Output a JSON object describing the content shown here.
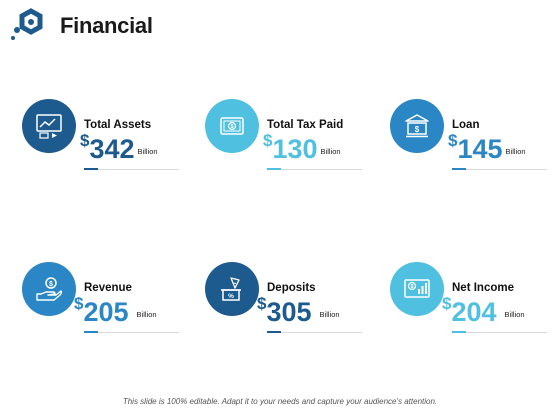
{
  "title": "Financial",
  "colors": {
    "dark_blue": "#1d5a8e",
    "mid_blue": "#2a86c4",
    "light_blue": "#4fc0e0"
  },
  "cards": [
    {
      "label": "Total Assets",
      "currency": "$",
      "value": "342",
      "unit": "Billion",
      "icon": "presentation-chart-icon",
      "color": "dark_blue"
    },
    {
      "label": "Total Tax Paid",
      "currency": "$",
      "value": "130",
      "unit": "Billion",
      "icon": "banknote-icon",
      "color": "light_blue"
    },
    {
      "label": "Loan",
      "currency": "$",
      "value": "145",
      "unit": "Billion",
      "icon": "bank-icon",
      "color": "mid_blue"
    },
    {
      "label": "Revenue",
      "currency": "$",
      "value": "205",
      "unit": "Billion",
      "icon": "hand-coin-icon",
      "color": "mid_blue"
    },
    {
      "label": "Deposits",
      "currency": "$",
      "value": "305",
      "unit": "Billion",
      "icon": "deposit-icon",
      "color": "dark_blue"
    },
    {
      "label": "Net Income",
      "currency": "$",
      "value": "204",
      "unit": "Billion",
      "icon": "money-chart-icon",
      "color": "light_blue"
    }
  ],
  "footer": "This slide is 100% editable. Adapt it to your needs and capture your audience's attention."
}
